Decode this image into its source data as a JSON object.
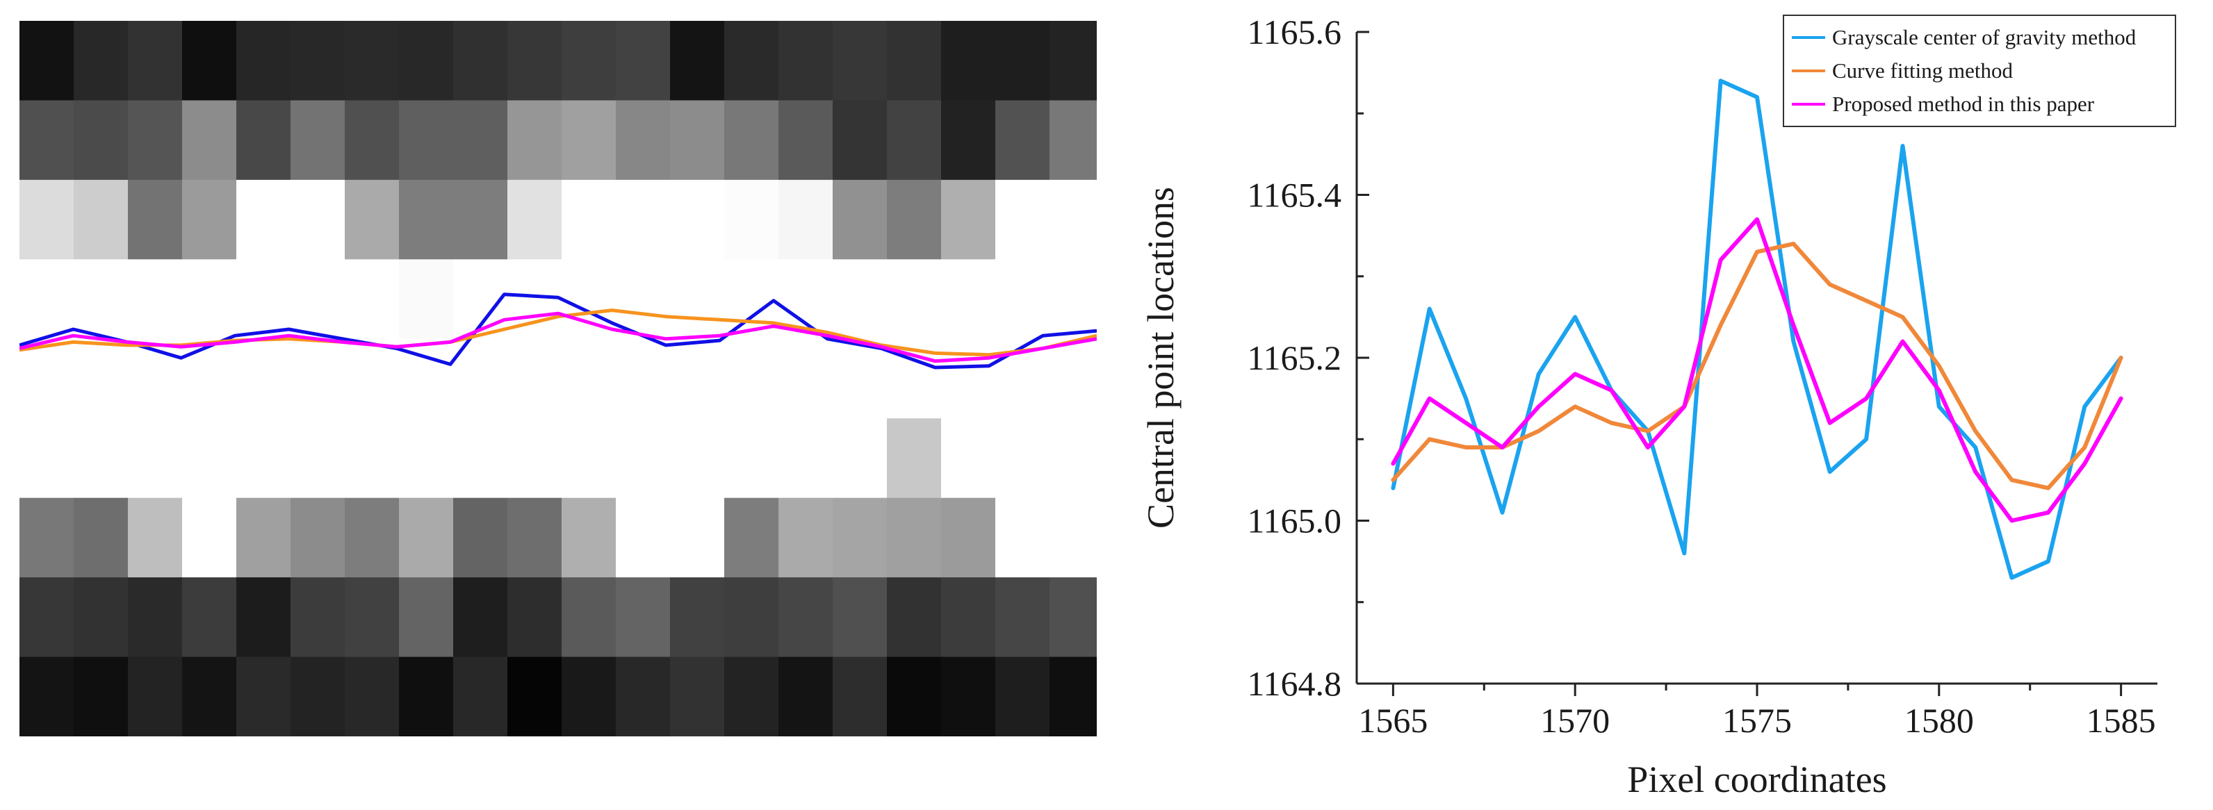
{
  "left_image": {
    "grid": {
      "rows": [
        [
          18,
          40,
          50,
          15,
          38,
          40,
          42,
          40,
          48,
          55,
          62,
          66,
          20,
          42,
          50,
          55,
          50,
          30,
          30,
          35,
          45
        ],
        [
          80,
          75,
          85,
          140,
          72,
          115,
          80,
          95,
          95,
          150,
          160,
          135,
          140,
          120,
          90,
          52,
          66,
          34,
          82,
          120,
          120
        ],
        [
          220,
          205,
          115,
          155,
          255,
          255,
          170,
          125,
          125,
          225,
          255,
          255,
          255,
          252,
          246,
          145,
          125,
          175,
          255,
          255,
          255
        ],
        [
          255,
          255,
          255,
          255,
          255,
          255,
          255,
          250,
          255,
          255,
          255,
          255,
          255,
          255,
          255,
          255,
          255,
          255,
          255,
          255,
          255
        ],
        [
          255,
          255,
          255,
          255,
          255,
          255,
          255,
          255,
          255,
          255,
          255,
          255,
          255,
          255,
          255,
          255,
          255,
          255,
          255,
          255,
          255
        ],
        [
          255,
          255,
          255,
          255,
          255,
          255,
          255,
          255,
          255,
          255,
          255,
          255,
          255,
          255,
          255,
          255,
          200,
          255,
          255,
          255,
          255
        ],
        [
          120,
          110,
          190,
          255,
          160,
          140,
          125,
          170,
          100,
          110,
          175,
          255,
          255,
          125,
          170,
          165,
          160,
          155,
          255,
          255,
          255
        ],
        [
          55,
          50,
          42,
          60,
          28,
          60,
          65,
          100,
          30,
          45,
          90,
          100,
          65,
          62,
          70,
          80,
          50,
          60,
          70,
          80,
          80
        ],
        [
          20,
          15,
          35,
          20,
          42,
          35,
          40,
          15,
          40,
          5,
          25,
          40,
          50,
          35,
          20,
          45,
          10,
          15,
          30,
          15,
          25
        ]
      ],
      "row_heights": [
        1,
        1,
        1,
        1,
        1,
        1,
        1,
        1,
        1
      ],
      "partial_last_column": true
    },
    "overlay_lines": [
      {
        "color": "#1010e6",
        "values": [
          0.46,
          0.56,
          0.48,
          0.38,
          0.52,
          0.56,
          0.5,
          0.44,
          0.34,
          0.78,
          0.76,
          0.6,
          0.46,
          0.49,
          0.74,
          0.5,
          0.44,
          0.32,
          0.33,
          0.52,
          0.55
        ]
      },
      {
        "color": "#f7931e",
        "values": [
          0.43,
          0.48,
          0.46,
          0.46,
          0.49,
          0.5,
          0.48,
          0.45,
          0.48,
          0.56,
          0.64,
          0.68,
          0.64,
          0.62,
          0.6,
          0.54,
          0.46,
          0.41,
          0.4,
          0.44,
          0.52
        ]
      },
      {
        "color": "#ff00ff",
        "values": [
          0.44,
          0.52,
          0.48,
          0.45,
          0.48,
          0.52,
          0.48,
          0.45,
          0.48,
          0.62,
          0.66,
          0.56,
          0.5,
          0.52,
          0.58,
          0.52,
          0.45,
          0.36,
          0.38,
          0.44,
          0.5
        ]
      }
    ]
  },
  "chart_data": {
    "type": "line",
    "title": "",
    "xlabel": "Pixel coordinates",
    "ylabel": "Central point locations",
    "xlim": [
      1564,
      1586
    ],
    "ylim": [
      1164.8,
      1165.6
    ],
    "xticks": [
      1565,
      1570,
      1575,
      1580,
      1585
    ],
    "yticks": [
      1164.8,
      1165.0,
      1165.2,
      1165.4,
      1165.6
    ],
    "xtick_labels": [
      "1565",
      "1570",
      "1575",
      "1580",
      "1585"
    ],
    "ytick_labels": [
      "1164.8",
      "1165.0",
      "1165.2",
      "1165.4",
      "1165.6"
    ],
    "grid": false,
    "legend_position": "top-right",
    "x": [
      1565,
      1566,
      1567,
      1568,
      1569,
      1570,
      1571,
      1572,
      1573,
      1574,
      1575,
      1576,
      1577,
      1578,
      1579,
      1580,
      1581,
      1582,
      1583,
      1584,
      1585
    ],
    "series": [
      {
        "name": "Grayscale center of gravity method",
        "color": "#1aa3ef",
        "values": [
          1165.04,
          1165.26,
          1165.15,
          1165.01,
          1165.18,
          1165.25,
          1165.16,
          1165.11,
          1164.96,
          1165.54,
          1165.52,
          1165.22,
          1165.06,
          1165.1,
          1165.46,
          1165.14,
          1165.09,
          1164.93,
          1164.95,
          1165.14,
          1165.2
        ]
      },
      {
        "name": "Curve fitting method",
        "color": "#f0883a",
        "values": [
          1165.05,
          1165.1,
          1165.09,
          1165.09,
          1165.11,
          1165.14,
          1165.12,
          1165.11,
          1165.14,
          1165.24,
          1165.33,
          1165.34,
          1165.29,
          1165.27,
          1165.25,
          1165.19,
          1165.11,
          1165.05,
          1165.04,
          1165.09,
          1165.2
        ]
      },
      {
        "name": "Proposed method in this paper",
        "color": "#ff00ff",
        "values": [
          1165.07,
          1165.15,
          1165.12,
          1165.09,
          1165.14,
          1165.18,
          1165.16,
          1165.09,
          1165.14,
          1165.32,
          1165.37,
          1165.24,
          1165.12,
          1165.15,
          1165.22,
          1165.16,
          1165.06,
          1165.0,
          1165.01,
          1165.07,
          1165.15
        ]
      }
    ]
  }
}
